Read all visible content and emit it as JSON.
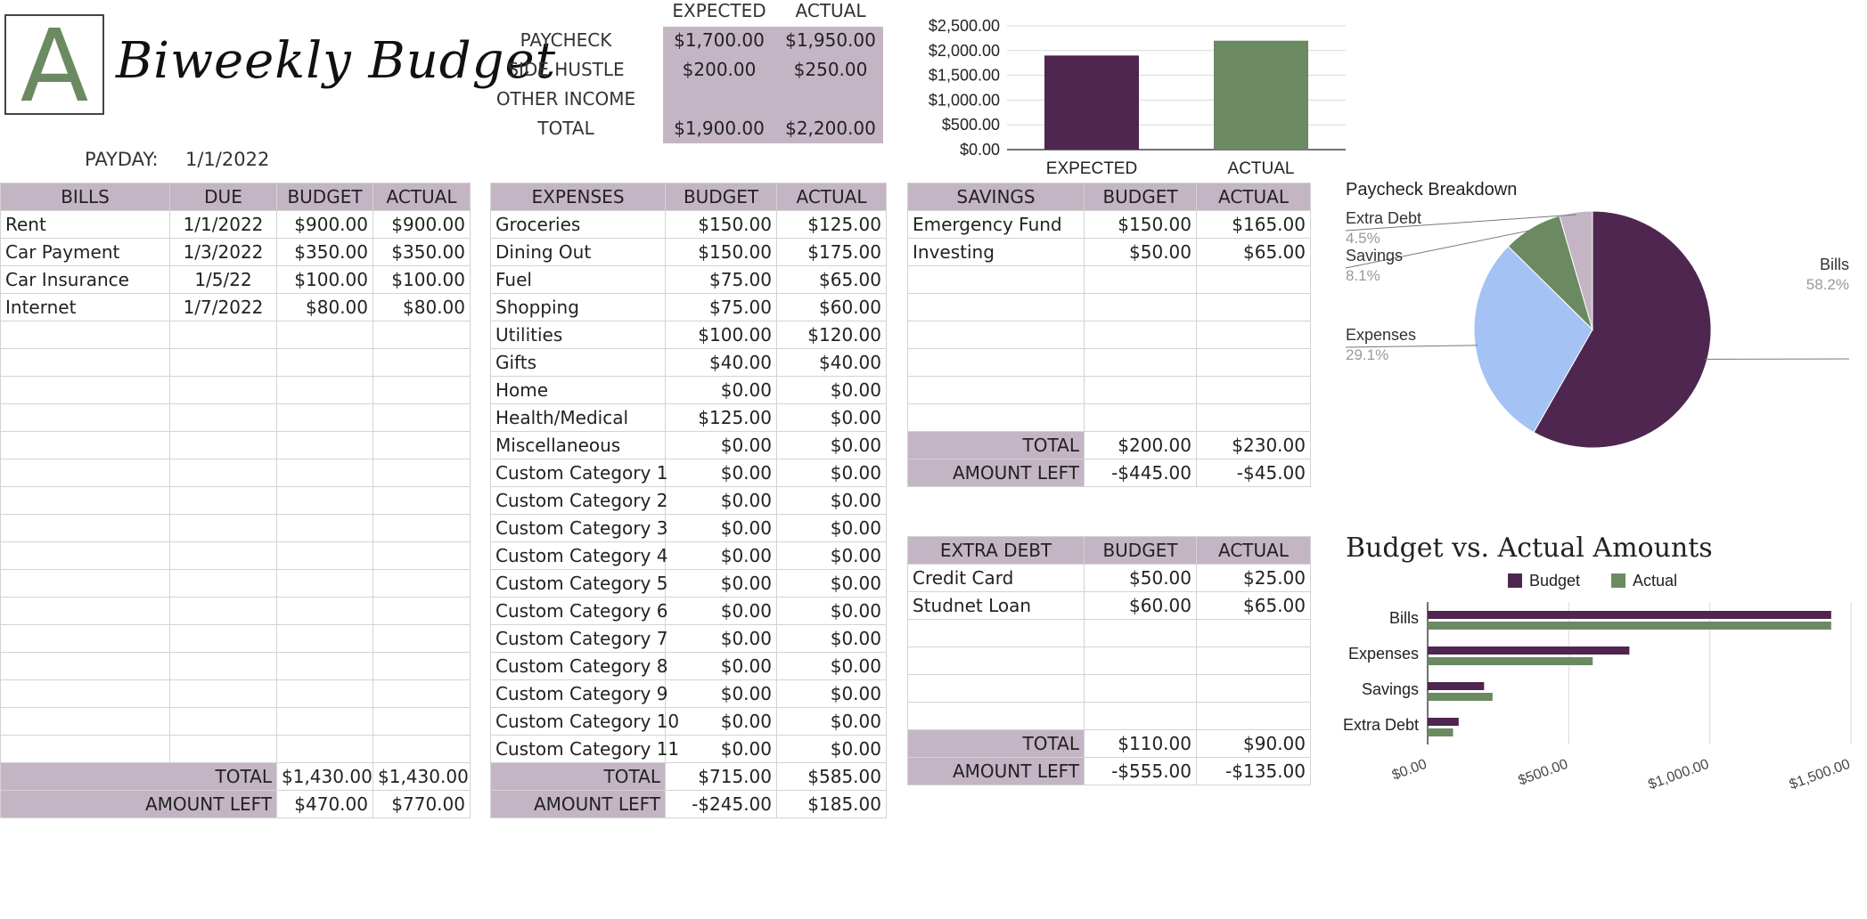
{
  "header": {
    "logo_letter": "A",
    "title": "Biweekly Budget",
    "payday_label": "PAYDAY:",
    "payday_value": "1/1/2022"
  },
  "income": {
    "col_expected": "EXPECTED",
    "col_actual": "ACTUAL",
    "rows": [
      {
        "label": "PAYCHECK",
        "expected": "$1,700.00",
        "actual": "$1,950.00"
      },
      {
        "label": "SIDE HUSTLE",
        "expected": "$200.00",
        "actual": "$250.00"
      },
      {
        "label": "OTHER INCOME",
        "expected": "",
        "actual": ""
      },
      {
        "label": "TOTAL",
        "expected": "$1,900.00",
        "actual": "$2,200.00"
      }
    ]
  },
  "bills": {
    "headers": [
      "BILLS",
      "DUE",
      "BUDGET",
      "ACTUAL"
    ],
    "rows": [
      [
        "Rent",
        "1/1/2022",
        "$900.00",
        "$900.00"
      ],
      [
        "Car Payment",
        "1/3/2022",
        "$350.00",
        "$350.00"
      ],
      [
        "Car Insurance",
        "1/5/22",
        "$100.00",
        "$100.00"
      ],
      [
        "Internet",
        "1/7/2022",
        "$80.00",
        "$80.00"
      ]
    ],
    "total_label": "TOTAL",
    "total_budget": "$1,430.00",
    "total_actual": "$1,430.00",
    "left_label": "AMOUNT LEFT",
    "left_budget": "$470.00",
    "left_actual": "$770.00"
  },
  "expenses": {
    "headers": [
      "EXPENSES",
      "BUDGET",
      "ACTUAL"
    ],
    "rows": [
      [
        "Groceries",
        "$150.00",
        "$125.00"
      ],
      [
        "Dining Out",
        "$150.00",
        "$175.00"
      ],
      [
        "Fuel",
        "$75.00",
        "$65.00"
      ],
      [
        "Shopping",
        "$75.00",
        "$60.00"
      ],
      [
        "Utilities",
        "$100.00",
        "$120.00"
      ],
      [
        "Gifts",
        "$40.00",
        "$40.00"
      ],
      [
        "Home",
        "$0.00",
        "$0.00"
      ],
      [
        "Health/Medical",
        "$125.00",
        "$0.00"
      ],
      [
        "Miscellaneous",
        "$0.00",
        "$0.00"
      ],
      [
        "Custom Category 1",
        "$0.00",
        "$0.00"
      ],
      [
        "Custom Category 2",
        "$0.00",
        "$0.00"
      ],
      [
        "Custom Category 3",
        "$0.00",
        "$0.00"
      ],
      [
        "Custom Category 4",
        "$0.00",
        "$0.00"
      ],
      [
        "Custom Category 5",
        "$0.00",
        "$0.00"
      ],
      [
        "Custom Category 6",
        "$0.00",
        "$0.00"
      ],
      [
        "Custom Category 7",
        "$0.00",
        "$0.00"
      ],
      [
        "Custom Category 8",
        "$0.00",
        "$0.00"
      ],
      [
        "Custom Category 9",
        "$0.00",
        "$0.00"
      ],
      [
        "Custom Category 10",
        "$0.00",
        "$0.00"
      ],
      [
        "Custom Category 11",
        "$0.00",
        "$0.00"
      ]
    ],
    "total_label": "TOTAL",
    "total_budget": "$715.00",
    "total_actual": "$585.00",
    "left_label": "AMOUNT LEFT",
    "left_budget": "-$245.00",
    "left_actual": "$185.00"
  },
  "savings": {
    "headers": [
      "SAVINGS",
      "BUDGET",
      "ACTUAL"
    ],
    "rows": [
      [
        "Emergency Fund",
        "$150.00",
        "$165.00"
      ],
      [
        "Investing",
        "$50.00",
        "$65.00"
      ]
    ],
    "total_label": "TOTAL",
    "total_budget": "$200.00",
    "total_actual": "$230.00",
    "left_label": "AMOUNT LEFT",
    "left_budget": "-$445.00",
    "left_actual": "-$45.00"
  },
  "extra_debt": {
    "headers": [
      "EXTRA DEBT",
      "BUDGET",
      "ACTUAL"
    ],
    "rows": [
      [
        "Credit Card",
        "$50.00",
        "$25.00"
      ],
      [
        "Studnet Loan",
        "$60.00",
        "$65.00"
      ]
    ],
    "total_label": "TOTAL",
    "total_budget": "$110.00",
    "total_actual": "$90.00",
    "left_label": "AMOUNT LEFT",
    "left_budget": "-$555.00",
    "left_actual": "-$135.00"
  },
  "colors": {
    "purple": "#4f2650",
    "green": "#6b8a62",
    "blue": "#a4c2f4",
    "mauve": "#c4b5c5",
    "header_fill": "#c4b5c5"
  },
  "chart_data": [
    {
      "type": "bar",
      "categories": [
        "EXPECTED",
        "ACTUAL"
      ],
      "values": [
        1900,
        2200
      ],
      "ylim": [
        0,
        2500
      ],
      "yticks": [
        "$0.00",
        "$500.00",
        "$1,000.00",
        "$1,500.00",
        "$2,000.00",
        "$2,500.00"
      ],
      "grid": true
    },
    {
      "type": "pie",
      "title": "Paycheck Breakdown",
      "slices": [
        {
          "label": "Bills",
          "percent": "58.2%",
          "value": 58.2
        },
        {
          "label": "Expenses",
          "percent": "29.1%",
          "value": 29.1
        },
        {
          "label": "Savings",
          "percent": "8.1%",
          "value": 8.1
        },
        {
          "label": "Extra Debt",
          "percent": "4.5%",
          "value": 4.5
        }
      ]
    },
    {
      "type": "bar",
      "orientation": "horizontal",
      "title": "Budget vs. Actual Amounts",
      "legend": "top",
      "categories": [
        "Bills",
        "Expenses",
        "Savings",
        "Extra Debt"
      ],
      "series": [
        {
          "name": "Budget",
          "values": [
            1430,
            715,
            200,
            110
          ]
        },
        {
          "name": "Actual",
          "values": [
            1430,
            585,
            230,
            90
          ]
        }
      ],
      "xlim": [
        0,
        1500
      ],
      "xticks": [
        "$0.00",
        "$500.00",
        "$1,000.00",
        "$1,500.00"
      ],
      "grid": true
    }
  ]
}
